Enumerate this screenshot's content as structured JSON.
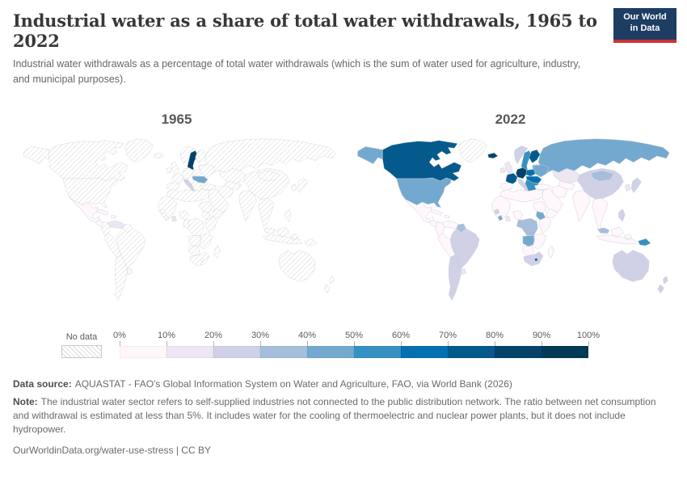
{
  "header": {
    "title": "Industrial water as a share of total water withdrawals, 1965 to 2022",
    "subtitle": "Industrial water withdrawals as a percentage of total water withdrawals (which is the sum of water used for agriculture, industry, and municipal purposes).",
    "logo": {
      "line1": "Our World",
      "line2": "in Data",
      "bg_color": "#1d3d63",
      "accent_color": "#cf3134"
    }
  },
  "chart_data": {
    "type": "choropleth",
    "title": "Industrial water as a share of total water withdrawals",
    "years": [
      "1965",
      "2022"
    ],
    "unit": "share of total water withdrawals (%)",
    "legend": {
      "no_data_label": "No data",
      "ticks": [
        "0%",
        "10%",
        "20%",
        "30%",
        "40%",
        "50%",
        "60%",
        "70%",
        "80%",
        "90%",
        "100%"
      ],
      "bins": [
        {
          "range": "0-10",
          "color": "#fff7fb"
        },
        {
          "range": "10-20",
          "color": "#ece7f2"
        },
        {
          "range": "20-30",
          "color": "#d0d1e6"
        },
        {
          "range": "30-40",
          "color": "#a6bddb"
        },
        {
          "range": "40-50",
          "color": "#74a9cf"
        },
        {
          "range": "50-60",
          "color": "#3690c0"
        },
        {
          "range": "60-70",
          "color": "#0570b0"
        },
        {
          "range": "70-80",
          "color": "#045a8d"
        },
        {
          "range": "80-90",
          "color": "#03436b"
        },
        {
          "range": "90-100",
          "color": "#023858"
        }
      ]
    },
    "maps": [
      {
        "year": "1965",
        "values": {
          "mexico": "0-10",
          "central-america": "0-10",
          "caribbean": "0-10",
          "venezuela": "10-20",
          "uruguay": "0-10",
          "sweden": "80-90",
          "italy": "20-30",
          "hungary": "40-50",
          "ghana": "10-20"
        }
      },
      {
        "year": "2022",
        "values": {
          "canada": "70-80",
          "alaska": "40-50",
          "usa": "40-50",
          "mexico": "0-10",
          "central-america": "0-10",
          "caribbean": "0-10",
          "colombia": "0-10",
          "venezuela": "0-10",
          "guyana": "30-40",
          "brazil": "20-30",
          "peru-bolivia": "0-10",
          "chile-argentina": "20-30",
          "uruguay": "10-20",
          "iceland": "80-90",
          "uk-ireland": "10-20",
          "norway": "20-30",
          "sweden": "50-60",
          "finland": "70-80",
          "baltics": "40-50",
          "germany": "80-90",
          "poland": "60-70",
          "france": "70-80",
          "spain-portugal": "0-10",
          "italy": "20-30",
          "hungary": "60-70",
          "balkans": "50-60",
          "ukraine-belarus": "40-50",
          "russia": "40-50",
          "turkey": "0-10",
          "iran": "0-10",
          "middle-east": "0-10",
          "kazakhstan": "10-20",
          "uzbek-turkmen": "0-10",
          "india": "0-10",
          "china": "20-30",
          "mongolia": "30-40",
          "korea": "10-20",
          "japan": "20-30",
          "se-asia": "0-10",
          "malaysia": "30-40",
          "indonesia": "0-10",
          "philippines": "20-30",
          "png": "50-60",
          "australia": "20-30",
          "new-zealand": "20-30",
          "north-africa": "0-10",
          "west-africa": "0-10",
          "guinea": "20-30",
          "liberia": "40-50",
          "ghana": "10-20",
          "nigeria": "0-10",
          "sudan": "0-10",
          "south-sudan": "40-50",
          "ethiopia-horn": "0-10",
          "east-africa": "0-10",
          "drc": "30-40",
          "congo-gabon": "30-40",
          "angola": "40-50",
          "zambia-zimbabwe-mozambique": "0-10",
          "namibia-botswana": "0-10",
          "south-africa": "20-30",
          "lesotho": "70-80",
          "madagascar": "0-10"
        }
      }
    ]
  },
  "footer": {
    "source_label": "Data source:",
    "source_text": "AQUASTAT - FAO's Global Information System on Water and Agriculture, FAO, via World Bank (2026)",
    "note_label": "Note:",
    "note_text": "The industrial water sector refers to self-supplied industries not connected to the public distribution network. The ratio between net consumption and withdrawal is estimated at less than 5%. It includes water for the cooling of thermoelectric and nuclear power plants, but it does not include hydropower.",
    "url_line": "OurWorldinData.org/water-use-stress | CC BY"
  }
}
